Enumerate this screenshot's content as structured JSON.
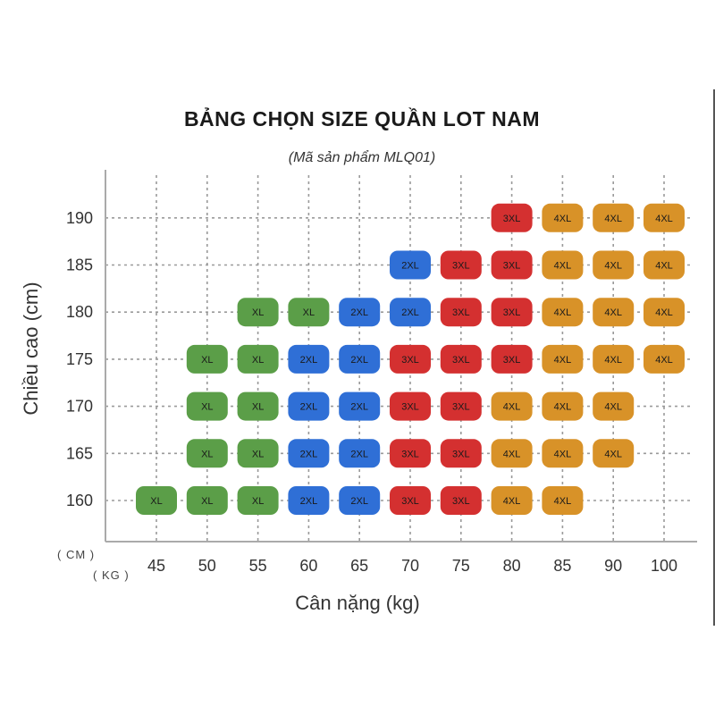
{
  "chart_data": {
    "type": "heatmap",
    "title": "BẢNG CHỌN SIZE QUẦN LOT NAM",
    "subtitle": "(Mã sản phẩm MLQ01)",
    "xlabel": "Cân nặng (kg)",
    "ylabel": "Chiều cao (cm)",
    "x_unit_label": "( KG )",
    "y_unit_label": "( CM )",
    "x_ticks": [
      45,
      50,
      55,
      60,
      65,
      70,
      75,
      80,
      85,
      90,
      100
    ],
    "y_ticks": [
      160,
      165,
      170,
      175,
      180,
      185,
      190
    ],
    "size_colors": {
      "XL": "#5b9e48",
      "2XL": "#2f6fd6",
      "3XL": "#d43030",
      "4XL": "#d89228"
    },
    "cells": [
      {
        "weight": 45,
        "height": 160,
        "size": "XL"
      },
      {
        "weight": 50,
        "height": 160,
        "size": "XL"
      },
      {
        "weight": 55,
        "height": 160,
        "size": "XL"
      },
      {
        "weight": 60,
        "height": 160,
        "size": "2XL"
      },
      {
        "weight": 65,
        "height": 160,
        "size": "2XL"
      },
      {
        "weight": 70,
        "height": 160,
        "size": "3XL"
      },
      {
        "weight": 75,
        "height": 160,
        "size": "3XL"
      },
      {
        "weight": 80,
        "height": 160,
        "size": "4XL"
      },
      {
        "weight": 85,
        "height": 160,
        "size": "4XL"
      },
      {
        "weight": 50,
        "height": 165,
        "size": "XL"
      },
      {
        "weight": 55,
        "height": 165,
        "size": "XL"
      },
      {
        "weight": 60,
        "height": 165,
        "size": "2XL"
      },
      {
        "weight": 65,
        "height": 165,
        "size": "2XL"
      },
      {
        "weight": 70,
        "height": 165,
        "size": "3XL"
      },
      {
        "weight": 75,
        "height": 165,
        "size": "3XL"
      },
      {
        "weight": 80,
        "height": 165,
        "size": "4XL"
      },
      {
        "weight": 85,
        "height": 165,
        "size": "4XL"
      },
      {
        "weight": 90,
        "height": 165,
        "size": "4XL"
      },
      {
        "weight": 50,
        "height": 170,
        "size": "XL"
      },
      {
        "weight": 55,
        "height": 170,
        "size": "XL"
      },
      {
        "weight": 60,
        "height": 170,
        "size": "2XL"
      },
      {
        "weight": 65,
        "height": 170,
        "size": "2XL"
      },
      {
        "weight": 70,
        "height": 170,
        "size": "3XL"
      },
      {
        "weight": 75,
        "height": 170,
        "size": "3XL"
      },
      {
        "weight": 80,
        "height": 170,
        "size": "4XL"
      },
      {
        "weight": 85,
        "height": 170,
        "size": "4XL"
      },
      {
        "weight": 90,
        "height": 170,
        "size": "4XL"
      },
      {
        "weight": 50,
        "height": 175,
        "size": "XL"
      },
      {
        "weight": 55,
        "height": 175,
        "size": "XL"
      },
      {
        "weight": 60,
        "height": 175,
        "size": "2XL"
      },
      {
        "weight": 65,
        "height": 175,
        "size": "2XL"
      },
      {
        "weight": 70,
        "height": 175,
        "size": "3XL"
      },
      {
        "weight": 75,
        "height": 175,
        "size": "3XL"
      },
      {
        "weight": 80,
        "height": 175,
        "size": "3XL"
      },
      {
        "weight": 85,
        "height": 175,
        "size": "4XL"
      },
      {
        "weight": 90,
        "height": 175,
        "size": "4XL"
      },
      {
        "weight": 100,
        "height": 175,
        "size": "4XL"
      },
      {
        "weight": 55,
        "height": 180,
        "size": "XL"
      },
      {
        "weight": 60,
        "height": 180,
        "size": "XL"
      },
      {
        "weight": 65,
        "height": 180,
        "size": "2XL"
      },
      {
        "weight": 70,
        "height": 180,
        "size": "2XL"
      },
      {
        "weight": 75,
        "height": 180,
        "size": "3XL"
      },
      {
        "weight": 80,
        "height": 180,
        "size": "3XL"
      },
      {
        "weight": 85,
        "height": 180,
        "size": "4XL"
      },
      {
        "weight": 90,
        "height": 180,
        "size": "4XL"
      },
      {
        "weight": 100,
        "height": 180,
        "size": "4XL"
      },
      {
        "weight": 70,
        "height": 185,
        "size": "2XL"
      },
      {
        "weight": 75,
        "height": 185,
        "size": "3XL"
      },
      {
        "weight": 80,
        "height": 185,
        "size": "3XL"
      },
      {
        "weight": 85,
        "height": 185,
        "size": "4XL"
      },
      {
        "weight": 90,
        "height": 185,
        "size": "4XL"
      },
      {
        "weight": 100,
        "height": 185,
        "size": "4XL"
      },
      {
        "weight": 80,
        "height": 190,
        "size": "3XL"
      },
      {
        "weight": 85,
        "height": 190,
        "size": "4XL"
      },
      {
        "weight": 90,
        "height": 190,
        "size": "4XL"
      },
      {
        "weight": 100,
        "height": 190,
        "size": "4XL"
      }
    ]
  }
}
